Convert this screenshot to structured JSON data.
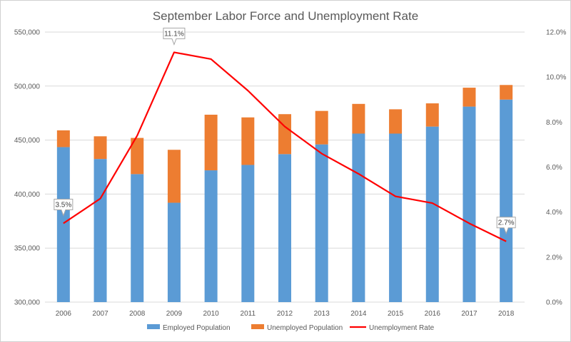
{
  "chart_data": {
    "type": "bar",
    "title": "September Labor Force and Unemployment Rate",
    "categories": [
      "2006",
      "2007",
      "2008",
      "2009",
      "2010",
      "2011",
      "2012",
      "2013",
      "2014",
      "2015",
      "2016",
      "2017",
      "2018"
    ],
    "series": [
      {
        "name": "Employed Population",
        "kind": "stacked-bar",
        "axis": "left",
        "values": [
          443500,
          432500,
          418500,
          392000,
          422000,
          427000,
          437000,
          446000,
          456000,
          456000,
          462500,
          481000,
          487500
        ]
      },
      {
        "name": "Unemployed Population",
        "kind": "stacked-bar",
        "axis": "left",
        "values": [
          15500,
          21000,
          33500,
          49000,
          51500,
          44000,
          37000,
          31000,
          27500,
          22500,
          21500,
          17500,
          13500
        ]
      },
      {
        "name": "Unemployment Rate",
        "kind": "line",
        "axis": "right",
        "values": [
          3.5,
          4.6,
          7.4,
          11.1,
          10.8,
          9.4,
          7.8,
          6.6,
          5.7,
          4.7,
          4.4,
          3.5,
          2.7
        ]
      }
    ],
    "ylim": [
      300000,
      550000
    ],
    "y_ticks": [
      "300,000",
      "350,000",
      "400,000",
      "450,000",
      "500,000",
      "550,000"
    ],
    "y2lim": [
      0,
      12
    ],
    "y2_ticks": [
      "0.0%",
      "2.0%",
      "4.0%",
      "6.0%",
      "8.0%",
      "10.0%",
      "12.0%"
    ],
    "data_labels": [
      {
        "index": 0,
        "text": "3.5%"
      },
      {
        "index": 3,
        "text": "11.1%"
      },
      {
        "index": 12,
        "text": "2.7%"
      }
    ],
    "grid": true,
    "legend_position": "bottom",
    "colors": {
      "employed": "#5b9bd5",
      "unemployed": "#ed7d31",
      "rate": "#ff0000",
      "grid": "#d9d9d9",
      "text": "#595959"
    }
  }
}
